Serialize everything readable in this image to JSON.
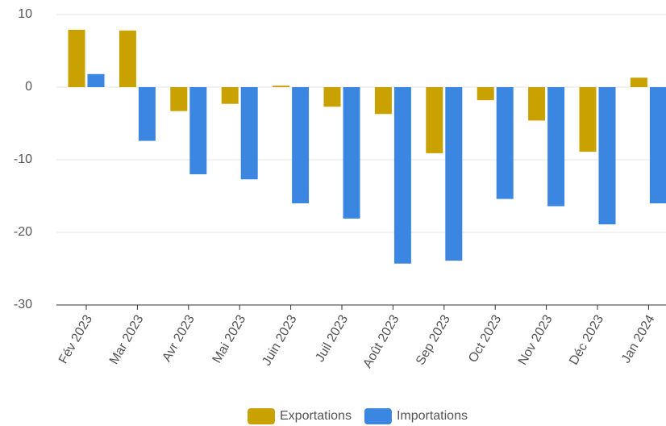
{
  "chart_data": {
    "type": "bar",
    "categories": [
      "Fév 2023",
      "Mar 2023",
      "Avr 2023",
      "Mai 2023",
      "Juin 2023",
      "Juil 2023",
      "Août 2023",
      "Sep 2023",
      "Oct 2023",
      "Nov 2023",
      "Déc 2023",
      "Jan 2024"
    ],
    "series": [
      {
        "name": "Exportations",
        "color": "#c9a100",
        "values": [
          7.9,
          7.8,
          -3.3,
          -2.3,
          0.2,
          -2.7,
          -3.7,
          -9.1,
          -1.8,
          -4.6,
          -8.9,
          1.3
        ]
      },
      {
        "name": "Importations",
        "color": "#3b86e0",
        "values": [
          1.8,
          -7.4,
          -12.0,
          -12.7,
          -16.0,
          -18.1,
          -24.3,
          -23.9,
          -15.4,
          -16.4,
          -18.9,
          -16.0
        ]
      }
    ],
    "ylim": [
      -30,
      10
    ],
    "yticks": [
      -30,
      -20,
      -10,
      0,
      10
    ],
    "grid": true,
    "legend": "bottom"
  }
}
